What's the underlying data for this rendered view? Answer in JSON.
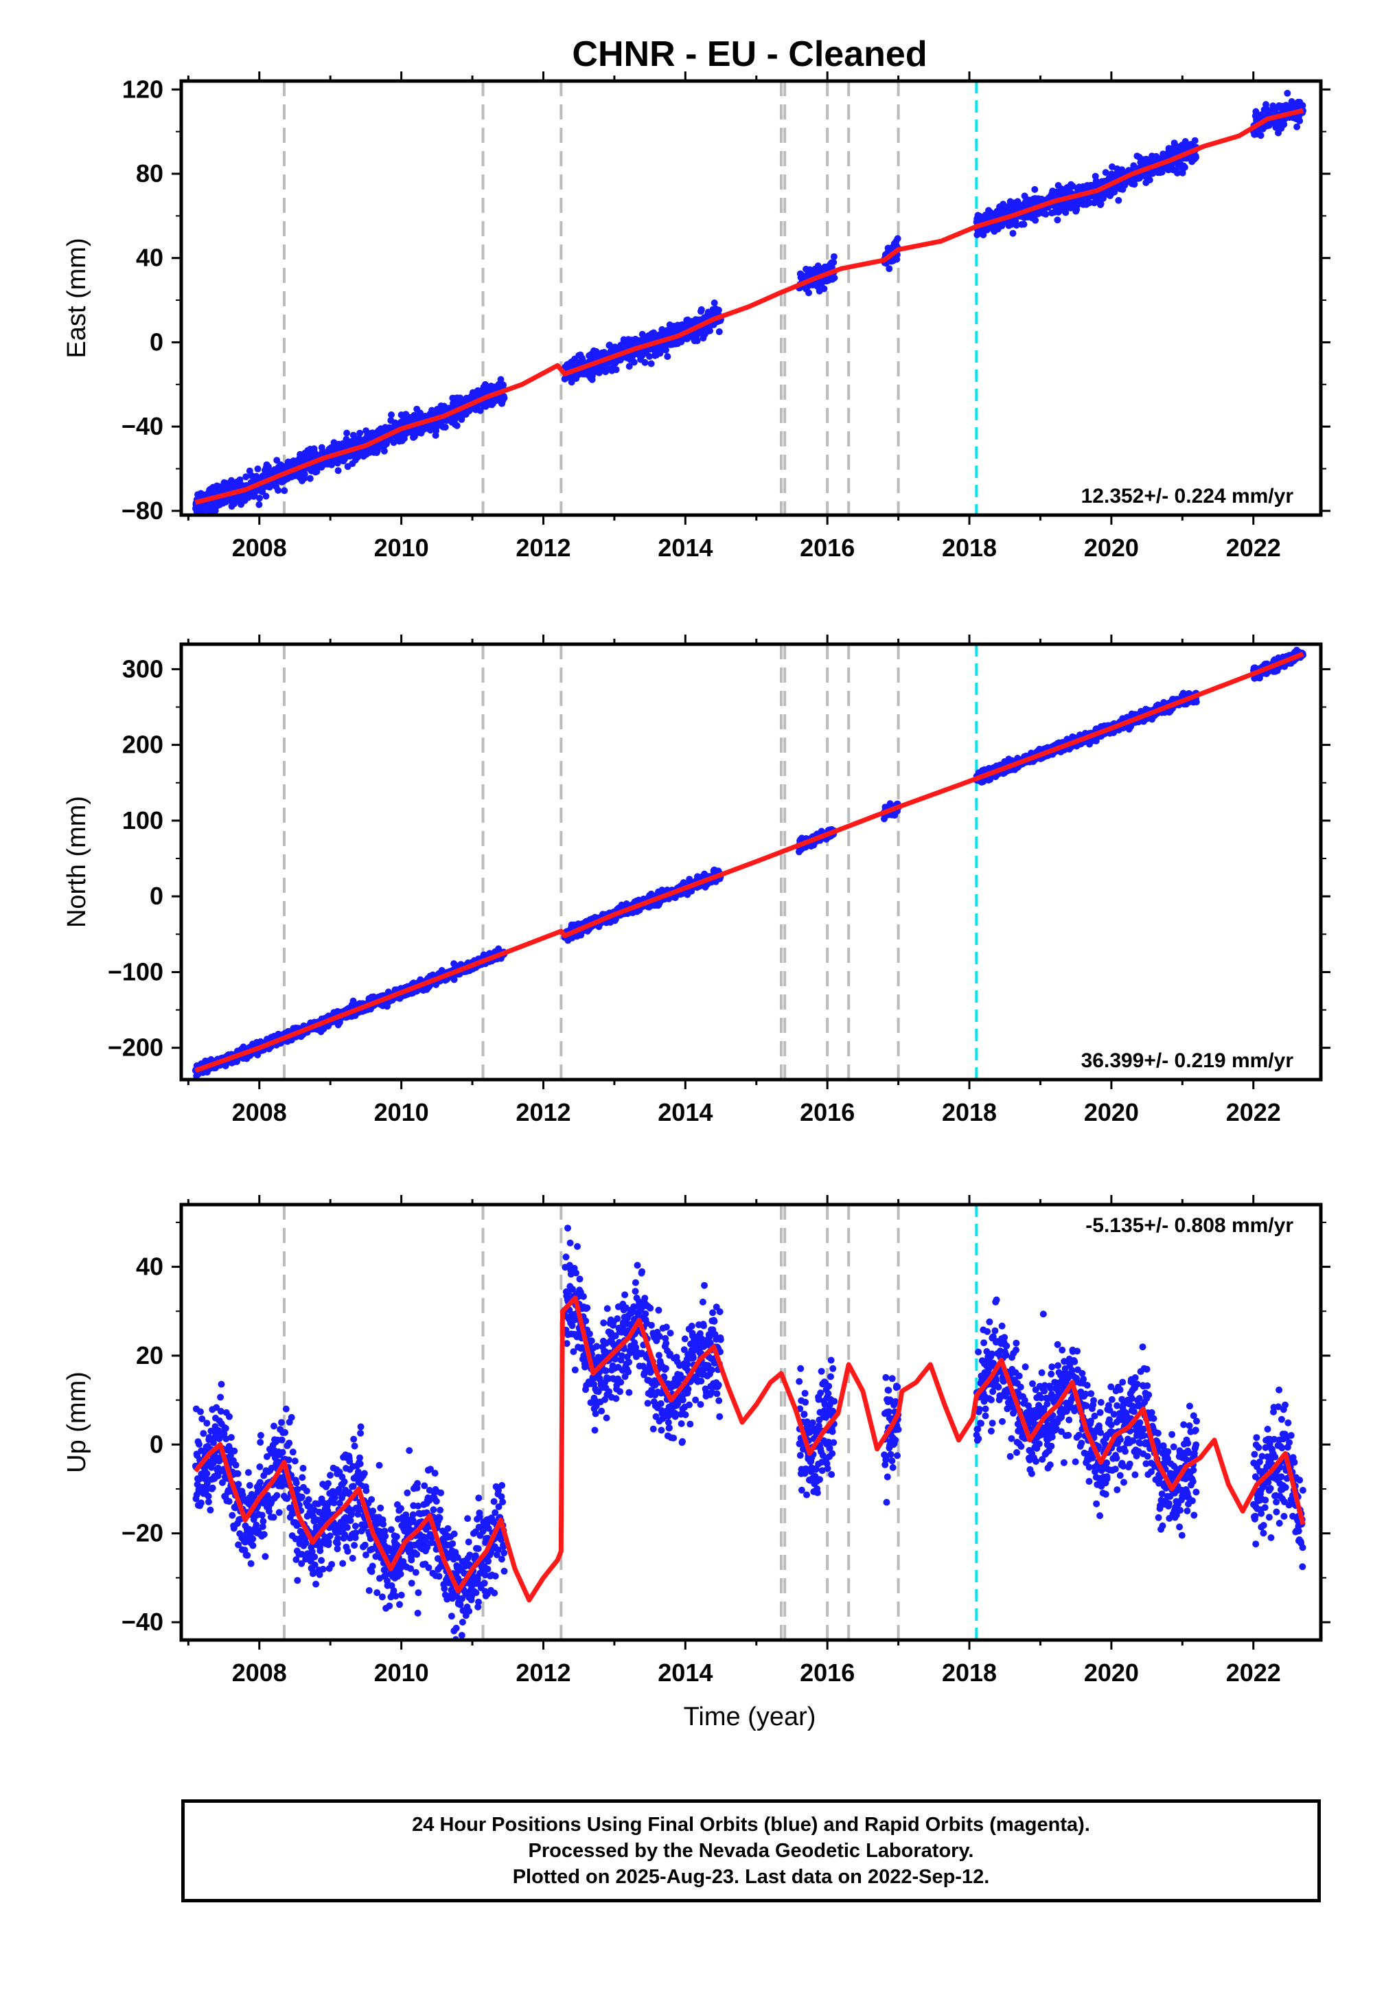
{
  "figure": {
    "title": "CHNR  - EU - Cleaned",
    "xlabel": "Time (year)",
    "footer": [
      "24 Hour Positions Using Final Orbits (blue) and Rapid Orbits (magenta).",
      "Processed by the Nevada Geodetic Laboratory.",
      "Plotted on 2025-Aug-23. Last data on 2022-Sep-12."
    ]
  },
  "colors": {
    "data_points": "#1a1aff",
    "model_line": "#ff1a1a",
    "equipment_change_line": "#bbbbbb",
    "event_line": "#00e5ee",
    "frame": "#000000"
  },
  "chart_data": [
    {
      "type": "scatter",
      "name": "east",
      "ylabel": "East (mm)",
      "xlim": [
        2006.9,
        2022.95
      ],
      "ylim": [
        -82,
        124
      ],
      "yticks": [
        -80,
        -40,
        0,
        40,
        80,
        120
      ],
      "xticks": [
        2008,
        2010,
        2012,
        2014,
        2016,
        2018,
        2020,
        2022
      ],
      "grid": false,
      "rate_label": "12.352+/- 0.224 mm/yr",
      "rate_position": "bottom-right",
      "model": [
        [
          2007.1,
          -76
        ],
        [
          2007.8,
          -70
        ],
        [
          2008.3,
          -63
        ],
        [
          2008.9,
          -55
        ],
        [
          2009.5,
          -49
        ],
        [
          2010.0,
          -41
        ],
        [
          2010.6,
          -35
        ],
        [
          2011.2,
          -26
        ],
        [
          2011.7,
          -20
        ],
        [
          2012.2,
          -11
        ],
        [
          2012.3,
          -15
        ],
        [
          2012.8,
          -9
        ],
        [
          2013.3,
          -3
        ],
        [
          2013.9,
          3
        ],
        [
          2014.4,
          11
        ],
        [
          2014.9,
          17
        ],
        [
          2015.3,
          23
        ],
        [
          2015.8,
          30
        ],
        [
          2016.2,
          35
        ],
        [
          2016.8,
          39
        ],
        [
          2017.0,
          44
        ],
        [
          2017.6,
          48
        ],
        [
          2018.1,
          55
        ],
        [
          2018.6,
          60
        ],
        [
          2019.2,
          67
        ],
        [
          2019.8,
          72
        ],
        [
          2020.3,
          80
        ],
        [
          2020.8,
          86
        ],
        [
          2021.3,
          93
        ],
        [
          2021.8,
          98
        ],
        [
          2022.2,
          106
        ],
        [
          2022.7,
          110
        ]
      ],
      "observation_spans": [
        [
          2007.1,
          2011.45
        ],
        [
          2012.3,
          2014.5
        ],
        [
          2015.6,
          2016.1
        ],
        [
          2016.8,
          2017.0
        ],
        [
          2018.1,
          2021.2
        ],
        [
          2022.0,
          2022.7
        ]
      ],
      "scatter_sigma": 2.8,
      "equipment_changes": [
        2008.35,
        2011.15,
        2012.25,
        2015.35,
        2015.4,
        2016.0,
        2016.3,
        2017.0
      ],
      "events": [
        2018.1
      ]
    },
    {
      "type": "scatter",
      "name": "north",
      "ylabel": "North (mm)",
      "xlim": [
        2006.9,
        2022.95
      ],
      "ylim": [
        -242,
        333
      ],
      "yticks": [
        -200,
        -100,
        0,
        100,
        200,
        300
      ],
      "xticks": [
        2008,
        2010,
        2012,
        2014,
        2016,
        2018,
        2020,
        2022
      ],
      "grid": false,
      "rate_label": "36.399+/- 0.219 mm/yr",
      "rate_position": "bottom-right",
      "model": [
        [
          2007.1,
          -230
        ],
        [
          2008.0,
          -200
        ],
        [
          2009.0,
          -163
        ],
        [
          2010.0,
          -127
        ],
        [
          2011.0,
          -91
        ],
        [
          2012.25,
          -46
        ],
        [
          2012.3,
          -52
        ],
        [
          2013.0,
          -24
        ],
        [
          2014.0,
          11
        ],
        [
          2015.0,
          46
        ],
        [
          2016.0,
          82
        ],
        [
          2017.0,
          118
        ],
        [
          2018.0,
          152
        ],
        [
          2019.0,
          187
        ],
        [
          2020.0,
          222
        ],
        [
          2021.0,
          258
        ],
        [
          2022.0,
          294
        ],
        [
          2022.7,
          320
        ]
      ],
      "observation_spans": [
        [
          2007.1,
          2011.45
        ],
        [
          2012.3,
          2014.5
        ],
        [
          2015.6,
          2016.1
        ],
        [
          2016.8,
          2017.0
        ],
        [
          2018.1,
          2021.2
        ],
        [
          2022.0,
          2022.7
        ]
      ],
      "scatter_sigma": 3.5,
      "equipment_changes": [
        2008.35,
        2011.15,
        2012.25,
        2015.35,
        2015.4,
        2016.0,
        2016.3,
        2017.0
      ],
      "events": [
        2018.1
      ]
    },
    {
      "type": "scatter",
      "name": "up",
      "ylabel": "Up (mm)",
      "xlim": [
        2006.9,
        2022.95
      ],
      "ylim": [
        -44,
        54
      ],
      "yticks": [
        -40,
        -20,
        0,
        20,
        40
      ],
      "xticks": [
        2008,
        2010,
        2012,
        2014,
        2016,
        2018,
        2020,
        2022
      ],
      "grid": false,
      "rate_label": "-5.135+/- 0.808 mm/yr",
      "rate_position": "top-right",
      "model": [
        [
          2007.1,
          -6
        ],
        [
          2007.3,
          -2
        ],
        [
          2007.45,
          0
        ],
        [
          2007.6,
          -8
        ],
        [
          2007.8,
          -17
        ],
        [
          2008.0,
          -12
        ],
        [
          2008.2,
          -8
        ],
        [
          2008.35,
          -4
        ],
        [
          2008.55,
          -16
        ],
        [
          2008.75,
          -22
        ],
        [
          2008.95,
          -18
        ],
        [
          2009.2,
          -14
        ],
        [
          2009.4,
          -10
        ],
        [
          2009.6,
          -20
        ],
        [
          2009.85,
          -28
        ],
        [
          2010.05,
          -22
        ],
        [
          2010.25,
          -19
        ],
        [
          2010.4,
          -16
        ],
        [
          2010.6,
          -26
        ],
        [
          2010.8,
          -33
        ],
        [
          2011.0,
          -28
        ],
        [
          2011.2,
          -24
        ],
        [
          2011.4,
          -17
        ],
        [
          2011.6,
          -28
        ],
        [
          2011.8,
          -35
        ],
        [
          2012.0,
          -30
        ],
        [
          2012.2,
          -26
        ],
        [
          2012.25,
          -24
        ],
        [
          2012.27,
          30
        ],
        [
          2012.45,
          33
        ],
        [
          2012.7,
          16
        ],
        [
          2012.95,
          20
        ],
        [
          2013.2,
          24
        ],
        [
          2013.35,
          28
        ],
        [
          2013.6,
          16
        ],
        [
          2013.8,
          10
        ],
        [
          2014.0,
          14
        ],
        [
          2014.2,
          19
        ],
        [
          2014.4,
          22
        ],
        [
          2014.6,
          13
        ],
        [
          2014.8,
          5
        ],
        [
          2015.0,
          9
        ],
        [
          2015.2,
          14
        ],
        [
          2015.35,
          16
        ],
        [
          2015.55,
          8
        ],
        [
          2015.75,
          -2
        ],
        [
          2015.95,
          3
        ],
        [
          2016.15,
          7
        ],
        [
          2016.3,
          18
        ],
        [
          2016.5,
          12
        ],
        [
          2016.7,
          -1
        ],
        [
          2016.9,
          4
        ],
        [
          2017.0,
          7
        ],
        [
          2017.05,
          12
        ],
        [
          2017.25,
          14
        ],
        [
          2017.45,
          18
        ],
        [
          2017.65,
          9
        ],
        [
          2017.85,
          1
        ],
        [
          2018.05,
          6
        ],
        [
          2018.1,
          11
        ],
        [
          2018.3,
          15
        ],
        [
          2018.45,
          19
        ],
        [
          2018.65,
          10
        ],
        [
          2018.85,
          1
        ],
        [
          2019.05,
          6
        ],
        [
          2019.25,
          9
        ],
        [
          2019.45,
          14
        ],
        [
          2019.65,
          3
        ],
        [
          2019.85,
          -4
        ],
        [
          2020.05,
          2
        ],
        [
          2020.25,
          4
        ],
        [
          2020.45,
          8
        ],
        [
          2020.65,
          -4
        ],
        [
          2020.85,
          -10
        ],
        [
          2021.05,
          -5
        ],
        [
          2021.25,
          -3
        ],
        [
          2021.45,
          1
        ],
        [
          2021.65,
          -9
        ],
        [
          2021.85,
          -15
        ],
        [
          2022.05,
          -9
        ],
        [
          2022.25,
          -6
        ],
        [
          2022.45,
          -2
        ],
        [
          2022.7,
          -18
        ]
      ],
      "observation_spans": [
        [
          2007.1,
          2011.45
        ],
        [
          2012.3,
          2014.5
        ],
        [
          2015.6,
          2016.1
        ],
        [
          2016.8,
          2017.0
        ],
        [
          2018.1,
          2021.2
        ],
        [
          2022.0,
          2022.7
        ]
      ],
      "scatter_sigma": 5.5,
      "equipment_changes": [
        2008.35,
        2011.15,
        2012.25,
        2015.35,
        2015.4,
        2016.0,
        2016.3,
        2017.0
      ],
      "events": [
        2018.1
      ]
    }
  ]
}
